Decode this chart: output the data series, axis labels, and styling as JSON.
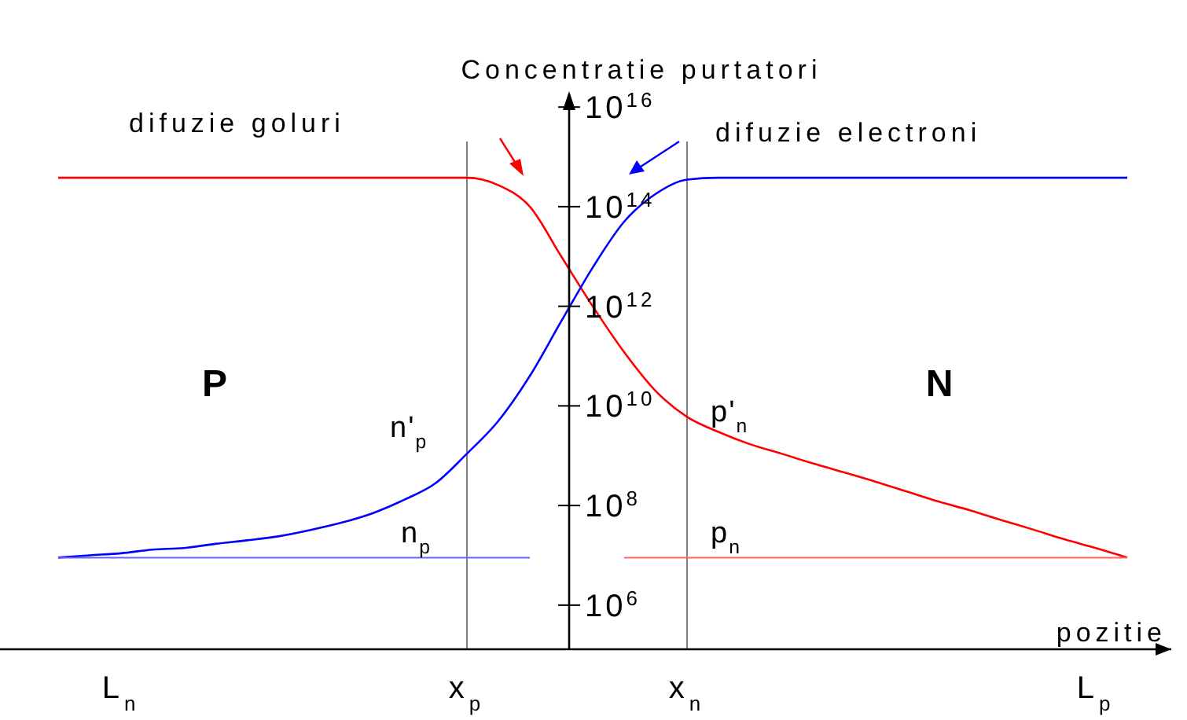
{
  "chart_data": {
    "type": "line",
    "title": "Concentratie purtatori",
    "xlabel": "pozitie",
    "categories": [
      null,
      null,
      "L$_{n}$",
      null,
      null,
      null,
      null,
      null,
      null,
      null,
      null,
      null,
      null,
      "x$_{p}$",
      null,
      null,
      null,
      null,
      null,
      null,
      "x$_{n}$",
      null,
      null,
      null,
      null,
      null,
      null,
      null,
      null,
      null,
      null,
      null,
      null,
      "L$_{p}$",
      null
    ],
    "ylim": [
      130000,
      1.8e+16
    ],
    "log": true,
    "yticks": [
      {
        "value": 1000000.0,
        "label": "10$^{6}$"
      },
      {
        "value": 100000000.0,
        "label": "10$^{8}$"
      },
      {
        "value": 10000000000.0,
        "label": "10$^{10}$"
      },
      {
        "value": 1000000000000.0,
        "label": "10$^{12}$"
      },
      {
        "value": 100000000000000.0,
        "label": "10$^{14}$"
      },
      {
        "value": 1e+16,
        "label": "10$^{16}$"
      }
    ],
    "series": [
      {
        "color": "#ff0000",
        "values": [
          380000000000000.0,
          380000000000000.0,
          380000000000000.0,
          380000000000000.0,
          380000000000000.0,
          380000000000000.0,
          380000000000000.0,
          380000000000000.0,
          380000000000000.0,
          380000000000000.0,
          380000000000000.0,
          380000000000000.0,
          380000000000000.0,
          380000000000000.0,
          270000000000000.0,
          100000000000000.0,
          10000000000000.0,
          1000000000000.0,
          120000000000.0,
          20000000000.0,
          6000000000.0,
          3000000000.0,
          1700000000.0,
          1100000000.0,
          700000000.0,
          460000000.0,
          300000000.0,
          190000000.0,
          120000000.0,
          80000000.0,
          51000000.0,
          33000000.0,
          21000000.0,
          14000000.0,
          9000000.0
        ]
      },
      {
        "color": "#0000ff",
        "values": [
          9000000.0,
          10000000.0,
          11000000.0,
          13000000.0,
          14000000.0,
          17000000.0,
          20000000.0,
          24000000.0,
          32000000.0,
          45000000.0,
          70000000.0,
          130000000.0,
          280000000.0,
          1100000000.0,
          5000000000.0,
          40000000000.0,
          500000000000.0,
          6000000000000.0,
          50000000000000.0,
          180000000000000.0,
          350000000000000.0,
          380000000000000.0,
          380000000000000.0,
          380000000000000.0,
          380000000000000.0,
          380000000000000.0,
          380000000000000.0,
          380000000000000.0,
          380000000000000.0,
          380000000000000.0,
          380000000000000.0,
          380000000000000.0,
          380000000000000.0,
          380000000000000.0,
          380000000000000.0
        ]
      },
      {
        "color": "#6666ff",
        "values": [
          9000000.0,
          9000000.0,
          9000000.0,
          9000000.0,
          9000000.0,
          9000000.0,
          9000000.0,
          9000000.0,
          9000000.0,
          9000000.0,
          9000000.0,
          9000000.0,
          9000000.0,
          9000000.0,
          9000000.0,
          9000000.0,
          null,
          null,
          null,
          null,
          null,
          null,
          null,
          null,
          null,
          null,
          null,
          null,
          null,
          null,
          null,
          null,
          null,
          null,
          null
        ]
      },
      {
        "color": "#ff6666",
        "values": [
          null,
          null,
          null,
          null,
          null,
          null,
          null,
          null,
          null,
          null,
          null,
          null,
          null,
          null,
          null,
          null,
          null,
          null,
          9000000.0,
          9000000.0,
          9000000.0,
          9000000.0,
          9000000.0,
          9000000.0,
          9000000.0,
          9000000.0,
          9000000.0,
          9000000.0,
          9000000.0,
          9000000.0,
          9000000.0,
          9000000.0,
          9000000.0,
          9000000.0,
          9000000.0
        ]
      }
    ],
    "ref_lines": [
      {
        "axis": "x",
        "value": "x$_{p}$",
        "color": "#808080"
      },
      {
        "axis": "x",
        "value": "x$_{n}$",
        "color": "#808080"
      }
    ],
    "annotations": [
      "difuzie goluri",
      "difuzie electroni",
      "P",
      "N",
      "n'$_{p}$",
      "n$_{p}$",
      "p'$_{n}$",
      "p$_{n}$"
    ]
  }
}
